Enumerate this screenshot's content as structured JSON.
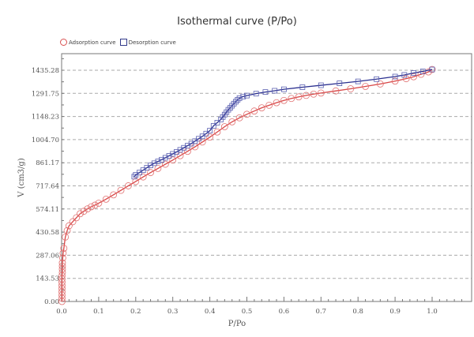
{
  "chart_data": {
    "type": "line",
    "title": "Isothermal curve (P/Po)",
    "xlabel": "P/Po",
    "ylabel": "V (cm3/g)",
    "xlim": [
      0,
      1.13
    ],
    "ylim": [
      0,
      1538
    ],
    "grid": "horizontal dashed",
    "legend_placement": "top-left",
    "xticks": [
      "0.0",
      "0.1",
      "0.2",
      "0.3",
      "0.4",
      "0.5",
      "0.6",
      "0.7",
      "0.8",
      "0.9",
      "1.0"
    ],
    "xtick_values": [
      0,
      0.1,
      0.2,
      0.3,
      0.4,
      0.5,
      0.6,
      0.7,
      0.8,
      0.9,
      1.0
    ],
    "yticks": [
      "0.00",
      "143.53",
      "287.06",
      "430.58",
      "574.11",
      "717.64",
      "861.17",
      "1004.70",
      "1148.23",
      "1291.75",
      "1435.28"
    ],
    "ytick_values": [
      0,
      143.53,
      287.06,
      430.58,
      574.11,
      717.64,
      861.17,
      1004.7,
      1148.23,
      1291.75,
      1435.28
    ],
    "series": [
      {
        "name": "Adsorption curve",
        "color": "#d84545",
        "marker": "circle",
        "x": [
          0.001,
          0.001,
          0.001,
          0.001,
          0.001,
          0.001,
          0.001,
          0.001,
          0.001,
          0.002,
          0.002,
          0.002,
          0.002,
          0.003,
          0.004,
          0.006,
          0.01,
          0.015,
          0.02,
          0.03,
          0.04,
          0.05,
          0.06,
          0.07,
          0.08,
          0.09,
          0.1,
          0.12,
          0.14,
          0.16,
          0.18,
          0.2,
          0.22,
          0.24,
          0.26,
          0.28,
          0.3,
          0.32,
          0.34,
          0.36,
          0.38,
          0.4,
          0.42,
          0.44,
          0.46,
          0.48,
          0.5,
          0.52,
          0.54,
          0.56,
          0.58,
          0.6,
          0.62,
          0.64,
          0.66,
          0.68,
          0.7,
          0.74,
          0.78,
          0.82,
          0.86,
          0.9,
          0.93,
          0.95,
          0.97,
          0.99,
          1.0
        ],
        "y": [
          0,
          20,
          40,
          60,
          80,
          100,
          120,
          140,
          160,
          180,
          200,
          220,
          240,
          270,
          300,
          330,
          400,
          440,
          470,
          495,
          520,
          545,
          560,
          575,
          588,
          598,
          610,
          635,
          662,
          690,
          718,
          745,
          773,
          800,
          826,
          852,
          878,
          905,
          932,
          960,
          990,
          1020,
          1052,
          1085,
          1115,
          1140,
          1162,
          1182,
          1202,
          1218,
          1234,
          1248,
          1260,
          1270,
          1279,
          1287,
          1294,
          1307,
          1320,
          1335,
          1350,
          1368,
          1383,
          1395,
          1410,
          1425,
          1440
        ]
      },
      {
        "name": "Desorption curve",
        "color": "#2a2f8f",
        "marker": "square",
        "x": [
          1.0,
          0.975,
          0.95,
          0.925,
          0.9,
          0.85,
          0.8,
          0.75,
          0.7,
          0.65,
          0.6,
          0.575,
          0.55,
          0.525,
          0.5,
          0.49,
          0.48,
          0.475,
          0.47,
          0.465,
          0.46,
          0.455,
          0.45,
          0.445,
          0.44,
          0.435,
          0.43,
          0.42,
          0.41,
          0.4,
          0.39,
          0.38,
          0.37,
          0.36,
          0.35,
          0.34,
          0.33,
          0.32,
          0.31,
          0.3,
          0.29,
          0.28,
          0.27,
          0.26,
          0.25,
          0.24,
          0.23,
          0.22,
          0.21,
          0.2,
          0.196
        ],
        "y": [
          1440,
          1428,
          1418,
          1406,
          1396,
          1380,
          1366,
          1354,
          1342,
          1330,
          1317,
          1308,
          1300,
          1290,
          1278,
          1272,
          1262,
          1252,
          1240,
          1228,
          1215,
          1202,
          1190,
          1175,
          1160,
          1145,
          1130,
          1110,
          1090,
          1060,
          1042,
          1025,
          1010,
          995,
          980,
          967,
          954,
          941,
          928,
          916,
          904,
          892,
          880,
          869,
          858,
          845,
          830,
          815,
          800,
          786,
          775
        ]
      }
    ]
  }
}
